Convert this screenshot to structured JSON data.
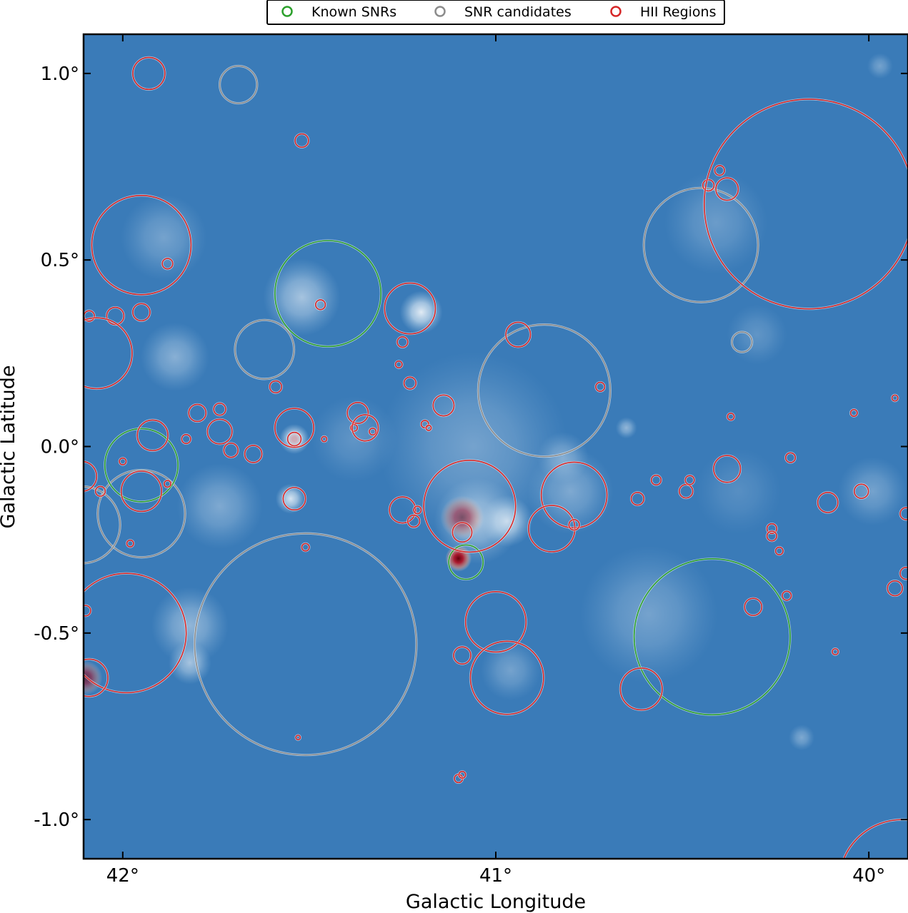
{
  "chart_data": {
    "type": "scatter",
    "xlabel": "Galactic Longitude",
    "ylabel": "Galactic Latitude",
    "x_units": "deg",
    "y_units": "deg",
    "x_axis_reversed": true,
    "xlim": [
      42.105,
      39.895
    ],
    "ylim": [
      -1.105,
      1.105
    ],
    "x_ticks": [
      {
        "value": 42.0,
        "label": "42°"
      },
      {
        "value": 41.0,
        "label": "41°"
      },
      {
        "value": 40.0,
        "label": "40°"
      }
    ],
    "y_ticks": [
      {
        "value": 1.0,
        "label": "1.0°"
      },
      {
        "value": 0.5,
        "label": "0.5°"
      },
      {
        "value": 0.0,
        "label": "0.0°"
      },
      {
        "value": -0.5,
        "label": "-0.5°"
      },
      {
        "value": -1.0,
        "label": "-1.0°"
      }
    ],
    "background": {
      "kind": "radio continuum image",
      "colormap": "blue to white to red",
      "base_color": "#3a7bb8",
      "bright_features": [
        {
          "l": 41.52,
          "b": 0.4,
          "r": 0.09,
          "i": 0.55
        },
        {
          "l": 41.2,
          "b": 0.36,
          "r": 0.05,
          "i": 0.85
        },
        {
          "l": 41.54,
          "b": 0.02,
          "r": 0.035,
          "i": 0.95
        },
        {
          "l": 41.55,
          "b": -0.14,
          "r": 0.035,
          "i": 0.8
        },
        {
          "l": 41.86,
          "b": 0.24,
          "r": 0.08,
          "i": 0.4
        },
        {
          "l": 41.05,
          "b": -0.2,
          "r": 0.1,
          "i": 0.55
        },
        {
          "l": 40.97,
          "b": -0.2,
          "r": 0.06,
          "i": 0.7
        },
        {
          "l": 41.06,
          "b": 0.0,
          "r": 0.22,
          "i": 0.3
        },
        {
          "l": 40.8,
          "b": -0.12,
          "r": 0.1,
          "i": 0.35
        },
        {
          "l": 40.59,
          "b": -0.45,
          "r": 0.16,
          "i": 0.3
        },
        {
          "l": 41.82,
          "b": -0.48,
          "r": 0.09,
          "i": 0.45
        },
        {
          "l": 41.82,
          "b": -0.58,
          "r": 0.05,
          "i": 0.55
        },
        {
          "l": 40.96,
          "b": -0.6,
          "r": 0.07,
          "i": 0.3
        },
        {
          "l": 41.74,
          "b": -0.16,
          "r": 0.1,
          "i": 0.35
        },
        {
          "l": 40.41,
          "b": 0.6,
          "r": 0.12,
          "i": 0.25
        },
        {
          "l": 41.89,
          "b": 0.56,
          "r": 0.1,
          "i": 0.3
        },
        {
          "l": 41.38,
          "b": 0.02,
          "r": 0.1,
          "i": 0.2
        },
        {
          "l": 40.65,
          "b": 0.05,
          "r": 0.025,
          "i": 0.45
        },
        {
          "l": 40.3,
          "b": 0.3,
          "r": 0.07,
          "i": 0.2
        },
        {
          "l": 39.99,
          "b": -0.12,
          "r": 0.08,
          "i": 0.3
        },
        {
          "l": 40.35,
          "b": -0.12,
          "r": 0.1,
          "i": 0.15
        },
        {
          "l": 40.82,
          "b": -0.03,
          "r": 0.06,
          "i": 0.35
        },
        {
          "l": 40.18,
          "b": -0.78,
          "r": 0.03,
          "i": 0.35
        },
        {
          "l": 39.97,
          "b": 1.02,
          "r": 0.03,
          "i": 0.3
        }
      ],
      "hot_spots": [
        {
          "l": 41.1,
          "b": -0.3,
          "r": 0.027,
          "i": 1.0
        },
        {
          "l": 41.09,
          "b": -0.19,
          "r": 0.045,
          "i": 0.55
        },
        {
          "l": 41.54,
          "b": 0.02,
          "r": 0.015,
          "i": 0.3
        },
        {
          "l": 42.1,
          "b": -0.62,
          "r": 0.035,
          "i": 0.6
        }
      ]
    },
    "series": [
      {
        "name": "Known SNRs",
        "color": "#2ca02c",
        "circles": [
          {
            "l": 41.45,
            "b": 0.41,
            "r": 0.142
          },
          {
            "l": 41.95,
            "b": -0.05,
            "r": 0.098
          },
          {
            "l": 41.08,
            "b": -0.31,
            "r": 0.046
          },
          {
            "l": 40.42,
            "b": -0.51,
            "r": 0.209
          }
        ]
      },
      {
        "name": "SNR candidates",
        "color": "#8c8c8c",
        "circles": [
          {
            "l": 41.69,
            "b": 0.97,
            "r": 0.05
          },
          {
            "l": 41.62,
            "b": 0.26,
            "r": 0.079
          },
          {
            "l": 40.87,
            "b": 0.15,
            "r": 0.177
          },
          {
            "l": 40.45,
            "b": 0.54,
            "r": 0.153
          },
          {
            "l": 40.34,
            "b": 0.28,
            "r": 0.027
          },
          {
            "l": 41.95,
            "b": -0.18,
            "r": 0.117
          },
          {
            "l": 42.11,
            "b": -0.21,
            "r": 0.103
          },
          {
            "l": 41.51,
            "b": -0.53,
            "r": 0.297
          }
        ]
      },
      {
        "name": "HII Regions",
        "color": "#d62728",
        "circles": [
          {
            "l": 41.93,
            "b": 1.0,
            "r": 0.043
          },
          {
            "l": 41.52,
            "b": 0.82,
            "r": 0.018
          },
          {
            "l": 41.95,
            "b": 0.54,
            "r": 0.133
          },
          {
            "l": 41.88,
            "b": 0.49,
            "r": 0.014
          },
          {
            "l": 42.09,
            "b": 0.35,
            "r": 0.014
          },
          {
            "l": 41.95,
            "b": 0.36,
            "r": 0.023
          },
          {
            "l": 42.02,
            "b": 0.35,
            "r": 0.023
          },
          {
            "l": 42.07,
            "b": 0.25,
            "r": 0.095
          },
          {
            "l": 41.47,
            "b": 0.38,
            "r": 0.013
          },
          {
            "l": 41.23,
            "b": 0.37,
            "r": 0.068
          },
          {
            "l": 41.25,
            "b": 0.28,
            "r": 0.014
          },
          {
            "l": 40.94,
            "b": 0.3,
            "r": 0.033
          },
          {
            "l": 41.26,
            "b": 0.22,
            "r": 0.009
          },
          {
            "l": 41.23,
            "b": 0.17,
            "r": 0.016
          },
          {
            "l": 41.59,
            "b": 0.16,
            "r": 0.016
          },
          {
            "l": 41.14,
            "b": 0.11,
            "r": 0.028
          },
          {
            "l": 41.8,
            "b": 0.09,
            "r": 0.023
          },
          {
            "l": 41.74,
            "b": 0.1,
            "r": 0.016
          },
          {
            "l": 41.92,
            "b": 0.03,
            "r": 0.041
          },
          {
            "l": 41.83,
            "b": 0.02,
            "r": 0.012
          },
          {
            "l": 41.74,
            "b": 0.04,
            "r": 0.033
          },
          {
            "l": 41.71,
            "b": -0.01,
            "r": 0.019
          },
          {
            "l": 41.65,
            "b": -0.02,
            "r": 0.023
          },
          {
            "l": 41.54,
            "b": 0.05,
            "r": 0.052
          },
          {
            "l": 41.54,
            "b": 0.02,
            "r": 0.018
          },
          {
            "l": 41.33,
            "b": 0.04,
            "r": 0.009
          },
          {
            "l": 41.38,
            "b": 0.05,
            "r": 0.009
          },
          {
            "l": 41.37,
            "b": 0.09,
            "r": 0.028
          },
          {
            "l": 41.35,
            "b": 0.05,
            "r": 0.035
          },
          {
            "l": 41.46,
            "b": 0.02,
            "r": 0.007
          },
          {
            "l": 41.19,
            "b": 0.06,
            "r": 0.01
          },
          {
            "l": 41.18,
            "b": 0.05,
            "r": 0.007
          },
          {
            "l": 41.95,
            "b": -0.12,
            "r": 0.054
          },
          {
            "l": 42.0,
            "b": -0.04,
            "r": 0.009
          },
          {
            "l": 41.88,
            "b": -0.1,
            "r": 0.009
          },
          {
            "l": 42.06,
            "b": -0.12,
            "r": 0.013
          },
          {
            "l": 42.11,
            "b": -0.08,
            "r": 0.04
          },
          {
            "l": 41.54,
            "b": -0.14,
            "r": 0.03
          },
          {
            "l": 41.98,
            "b": -0.26,
            "r": 0.009
          },
          {
            "l": 41.51,
            "b": -0.27,
            "r": 0.01
          },
          {
            "l": 41.25,
            "b": -0.17,
            "r": 0.035
          },
          {
            "l": 41.22,
            "b": -0.2,
            "r": 0.016
          },
          {
            "l": 41.21,
            "b": -0.17,
            "r": 0.01
          },
          {
            "l": 41.07,
            "b": -0.16,
            "r": 0.123
          },
          {
            "l": 41.09,
            "b": -0.23,
            "r": 0.026
          },
          {
            "l": 40.79,
            "b": -0.13,
            "r": 0.088
          },
          {
            "l": 40.85,
            "b": -0.22,
            "r": 0.062
          },
          {
            "l": 40.79,
            "b": -0.21,
            "r": 0.014
          },
          {
            "l": 40.62,
            "b": -0.14,
            "r": 0.017
          },
          {
            "l": 40.57,
            "b": -0.09,
            "r": 0.013
          },
          {
            "l": 40.49,
            "b": -0.12,
            "r": 0.018
          },
          {
            "l": 40.72,
            "b": 0.16,
            "r": 0.012
          },
          {
            "l": 40.38,
            "b": -0.06,
            "r": 0.036
          },
          {
            "l": 40.37,
            "b": 0.08,
            "r": 0.009
          },
          {
            "l": 40.26,
            "b": -0.22,
            "r": 0.013
          },
          {
            "l": 40.26,
            "b": -0.24,
            "r": 0.013
          },
          {
            "l": 40.24,
            "b": -0.28,
            "r": 0.01
          },
          {
            "l": 40.22,
            "b": -0.4,
            "r": 0.012
          },
          {
            "l": 40.31,
            "b": -0.43,
            "r": 0.023
          },
          {
            "l": 40.21,
            "b": -0.03,
            "r": 0.013
          },
          {
            "l": 40.11,
            "b": -0.15,
            "r": 0.027
          },
          {
            "l": 40.02,
            "b": -0.12,
            "r": 0.019
          },
          {
            "l": 40.04,
            "b": 0.09,
            "r": 0.009
          },
          {
            "l": 39.93,
            "b": 0.13,
            "r": 0.008
          },
          {
            "l": 40.09,
            "b": -0.55,
            "r": 0.008
          },
          {
            "l": 39.93,
            "b": -0.38,
            "r": 0.02
          },
          {
            "l": 39.9,
            "b": -0.34,
            "r": 0.016
          },
          {
            "l": 39.9,
            "b": -0.18,
            "r": 0.016
          },
          {
            "l": 40.38,
            "b": 0.69,
            "r": 0.03
          },
          {
            "l": 40.4,
            "b": 0.74,
            "r": 0.013
          },
          {
            "l": 40.43,
            "b": 0.7,
            "r": 0.015
          },
          {
            "l": 40.16,
            "b": 0.65,
            "r": 0.281
          },
          {
            "l": 41.0,
            "b": -0.47,
            "r": 0.081
          },
          {
            "l": 40.97,
            "b": -0.62,
            "r": 0.098
          },
          {
            "l": 41.09,
            "b": -0.56,
            "r": 0.023
          },
          {
            "l": 40.61,
            "b": -0.65,
            "r": 0.056
          },
          {
            "l": 41.99,
            "b": -0.5,
            "r": 0.16
          },
          {
            "l": 42.09,
            "b": -0.62,
            "r": 0.05
          },
          {
            "l": 42.1,
            "b": -0.44,
            "r": 0.014
          },
          {
            "l": 41.53,
            "b": -0.78,
            "r": 0.006
          },
          {
            "l": 41.1,
            "b": -0.89,
            "r": 0.011
          },
          {
            "l": 41.09,
            "b": -0.88,
            "r": 0.009
          },
          {
            "l": 39.91,
            "b": -1.17,
            "r": 0.17
          },
          {
            "l": 40.48,
            "b": -0.09,
            "r": 0.012
          }
        ]
      }
    ],
    "legend": {
      "position": "top-center",
      "marker": "circle outline"
    }
  }
}
